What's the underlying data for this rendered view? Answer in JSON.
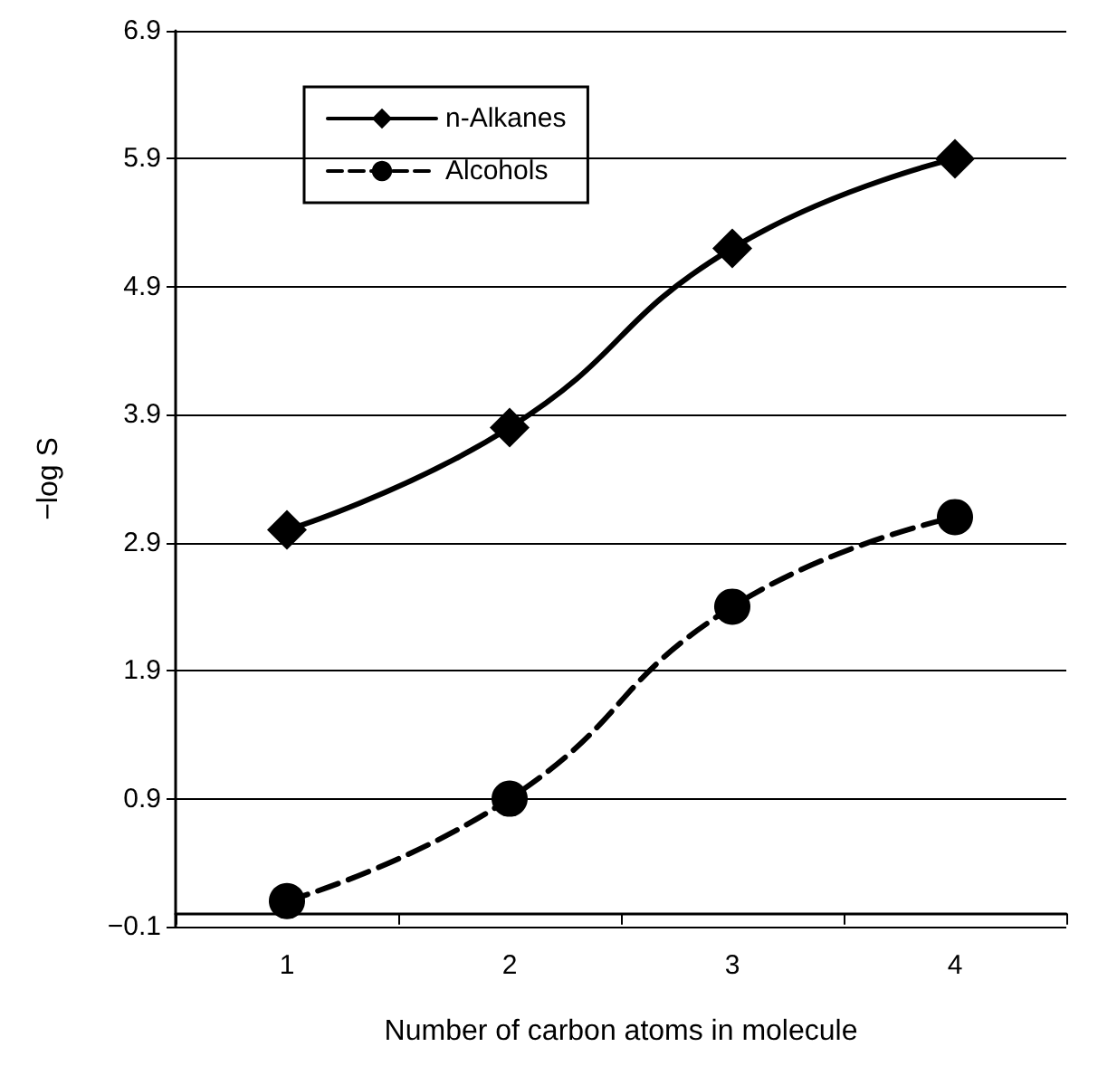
{
  "chart_data": {
    "type": "line",
    "xlabel": "Number of carbon atoms in molecule",
    "ylabel": "−log S",
    "categories": [
      "1",
      "2",
      "3",
      "4"
    ],
    "series": [
      {
        "name": "n-Alkanes",
        "color": "#000000",
        "marker": "diamond",
        "line_style": "solid",
        "values": [
          3.0,
          3.8,
          5.2,
          5.9
        ]
      },
      {
        "name": "Alcohols",
        "color": "#000000",
        "marker": "circle",
        "line_style": "dashed",
        "values": [
          0.1,
          0.9,
          2.4,
          3.1
        ]
      }
    ],
    "ylim": [
      -0.1,
      6.9
    ],
    "yticks": [
      -0.1,
      0.9,
      1.9,
      2.9,
      3.9,
      4.9,
      5.9,
      6.9
    ],
    "grid": "y",
    "legend": "top left"
  }
}
